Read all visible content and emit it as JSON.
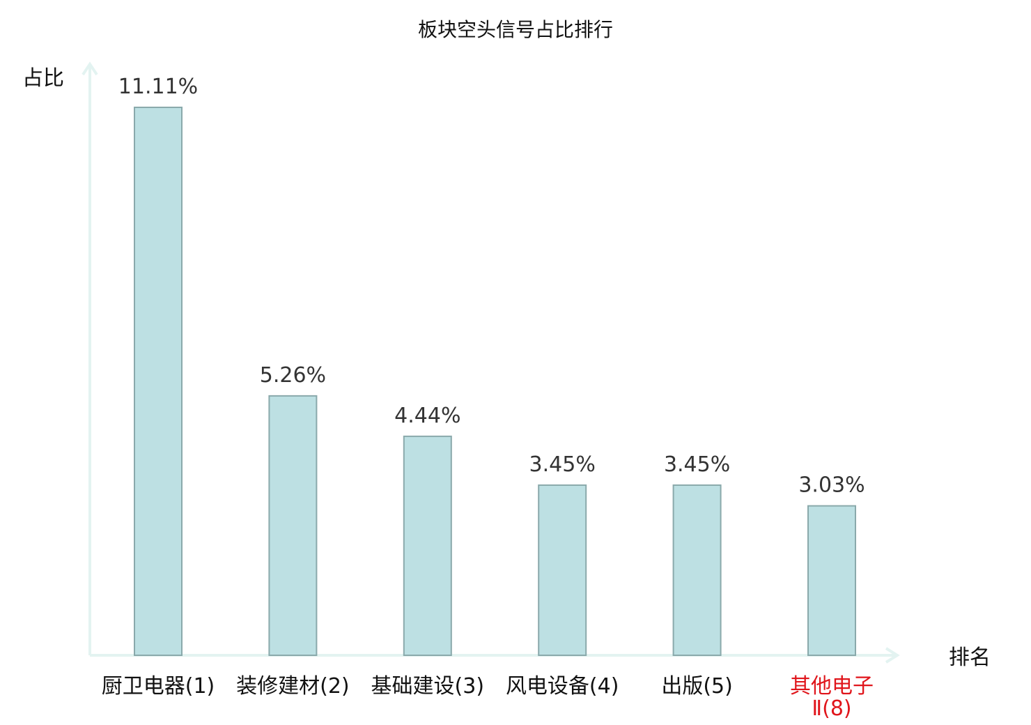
{
  "chart_data": {
    "type": "bar",
    "title": "板块空头信号占比排行",
    "ylabel": "占比",
    "xlabel": "排名",
    "categories": [
      "厨卫电器(1)",
      "装修建材(2)",
      "基础建设(3)",
      "风电设备(4)",
      "出版(5)",
      "其他电子Ⅱ(8)"
    ],
    "category_lines": [
      [
        "厨卫电器(1)"
      ],
      [
        "装修建材(2)"
      ],
      [
        "基础建设(3)"
      ],
      [
        "风电设备(4)"
      ],
      [
        "出版(5)"
      ],
      [
        "其他电子",
        "Ⅱ(8)"
      ]
    ],
    "values": [
      11.11,
      5.26,
      4.44,
      3.45,
      3.45,
      3.03
    ],
    "value_labels": [
      "11.11%",
      "5.26%",
      "4.44%",
      "3.45%",
      "3.45%",
      "3.03%"
    ],
    "highlight_index": 5,
    "ylim": [
      0,
      11.11
    ],
    "grid": false,
    "colors": {
      "bar_fill": "#bde0e3",
      "bar_stroke": "#8aa9ab",
      "axis": "#e3f3f1",
      "highlight_text": "#e0151b"
    }
  }
}
